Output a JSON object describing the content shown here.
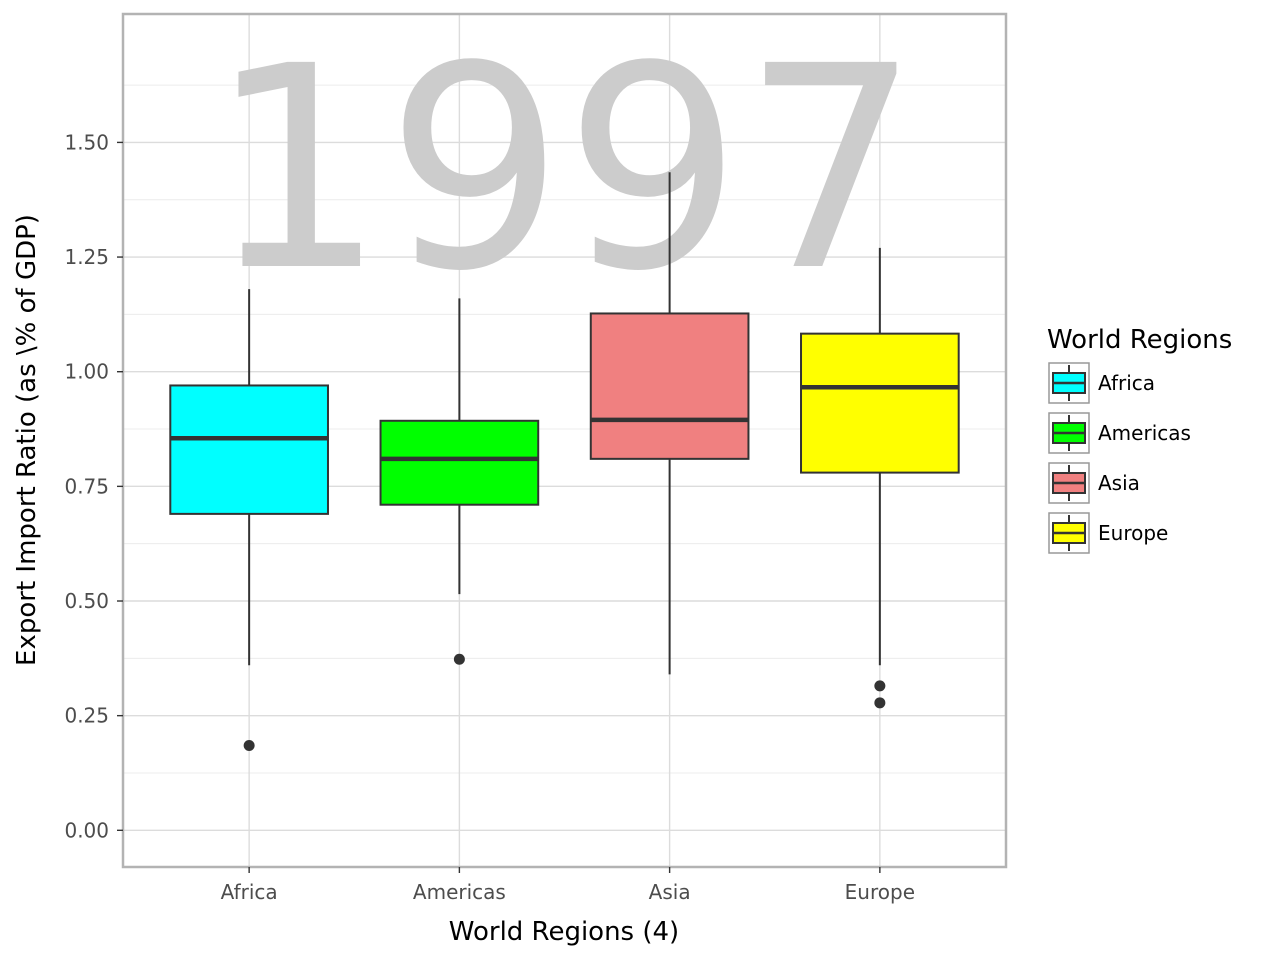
{
  "chart_data": {
    "type": "boxplot",
    "annotation": "1997",
    "xlabel": "World Regions (4)",
    "ylabel": "Export Import Ratio (as \\% of GDP)",
    "ylim": [
      -0.08,
      1.78
    ],
    "yticks": [
      0.0,
      0.25,
      0.5,
      0.75,
      1.0,
      1.25,
      1.5
    ],
    "ytick_labels": [
      "0.00",
      "0.25",
      "0.50",
      "0.75",
      "1.00",
      "1.25",
      "1.50"
    ],
    "grid": true,
    "legend": {
      "title": "World Regions",
      "position": "right"
    },
    "categories": [
      "Africa",
      "Americas",
      "Asia",
      "Europe"
    ],
    "series": [
      {
        "name": "Africa",
        "color": "#00ffff",
        "whisker_low": 0.36,
        "q1": 0.69,
        "median": 0.855,
        "q3": 0.97,
        "whisker_high": 1.18,
        "outliers": [
          0.185
        ]
      },
      {
        "name": "Americas",
        "color": "#00ff00",
        "whisker_low": 0.515,
        "q1": 0.71,
        "median": 0.81,
        "q3": 0.893,
        "whisker_high": 1.16,
        "outliers": [
          0.373
        ]
      },
      {
        "name": "Asia",
        "color": "#f08080",
        "whisker_low": 0.34,
        "q1": 0.81,
        "median": 0.895,
        "q3": 1.127,
        "whisker_high": 1.435,
        "outliers": []
      },
      {
        "name": "Europe",
        "color": "#ffff00",
        "whisker_low": 0.36,
        "q1": 0.78,
        "median": 0.966,
        "q3": 1.083,
        "whisker_high": 1.27,
        "outliers": [
          0.315,
          0.278
        ]
      }
    ]
  }
}
